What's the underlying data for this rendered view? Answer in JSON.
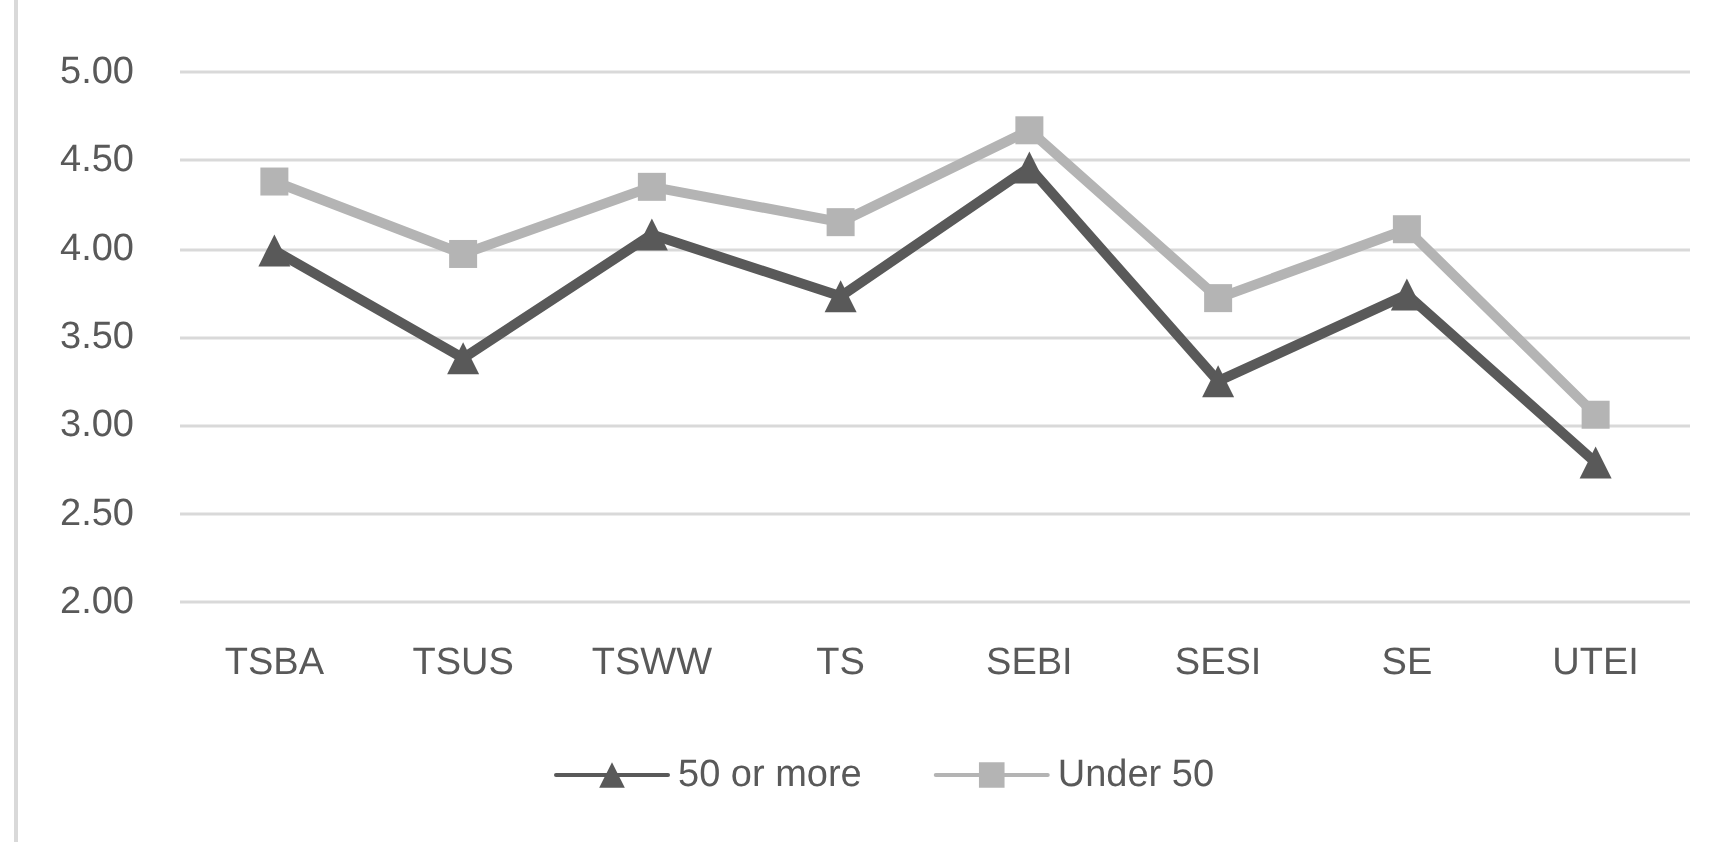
{
  "chart_data": {
    "type": "line",
    "categories": [
      "TSBA",
      "TSUS",
      "TSWW",
      "TS",
      "SEBI",
      "SESI",
      "SE",
      "UTEI"
    ],
    "series": [
      {
        "name": "50 or more",
        "color": "#595959",
        "marker": "triangle",
        "values": [
          3.99,
          3.38,
          4.08,
          3.73,
          4.46,
          3.25,
          3.74,
          2.79
        ]
      },
      {
        "name": "Under 50",
        "color": "#b4b4b4",
        "marker": "square",
        "values": [
          4.38,
          3.97,
          4.35,
          4.15,
          4.67,
          3.72,
          4.11,
          3.06
        ]
      }
    ],
    "ylim": [
      2,
      5
    ],
    "yticks": [
      {
        "value": 2,
        "label": "2.00"
      },
      {
        "value": 2.5,
        "label": "2.50"
      },
      {
        "value": 3,
        "label": "3.00"
      },
      {
        "value": 3.5,
        "label": "3.50"
      },
      {
        "value": 4,
        "label": "4.00"
      },
      {
        "value": 4.5,
        "label": "4.50"
      },
      {
        "value": 5,
        "label": "5.00"
      }
    ],
    "grid": "y",
    "legend": "bottom",
    "line_style": "solid"
  }
}
